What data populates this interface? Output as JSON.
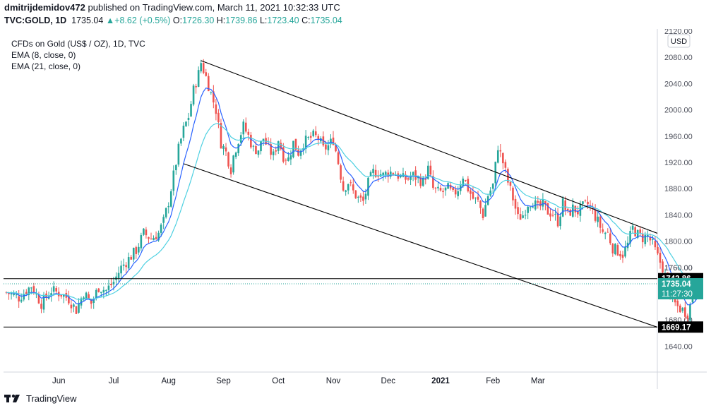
{
  "header": {
    "author": "dmitrijdemidov472",
    "published": "published on TradingView.com, March 11, 2021 10:32:33 UTC",
    "symbol": "TVC:GOLD, 1D",
    "last": "1735.04",
    "change": "+8.62 (+0.5%)",
    "open_label": "O:",
    "open": "1726.30",
    "high_label": "H:",
    "high": "1739.86",
    "low_label": "L:",
    "low": "1723.40",
    "close_label": "C:",
    "close": "1735.04"
  },
  "legend": {
    "title": "CFDs on Gold (US$ / OZ), 1D, TVC",
    "ema8": "EMA (8, close, 0)",
    "ema21": "EMA (21, close, 0)"
  },
  "footer": {
    "brand": "TradingView"
  },
  "colors": {
    "up": "#26a69a",
    "down": "#ef5350",
    "ema8": "#2962ff",
    "ema21": "#4dd0e1",
    "line": "#000000",
    "label_bg": "#000000",
    "price_bg": "#26a69a"
  },
  "icons": {
    "brand": "tradingview-logo-icon",
    "change": "triangle-up-icon"
  },
  "chart_data": {
    "type": "candlestick",
    "currency": "USD",
    "ylim": [
      1620,
      2120
    ],
    "y_ticks": [
      1640,
      1680,
      1720,
      1760,
      1800,
      1840,
      1880,
      1920,
      1960,
      2000,
      2040,
      2080,
      2120
    ],
    "x_labels": [
      "Jun",
      "Jul",
      "Aug",
      "Sep",
      "Oct",
      "Nov",
      "Dec",
      "2021",
      "Feb",
      "Mar"
    ],
    "x_label_days": [
      21,
      43,
      65,
      87,
      109,
      131,
      153,
      174,
      195,
      213
    ],
    "days": 231,
    "close_path": [
      [
        0,
        1722
      ],
      [
        5,
        1714
      ],
      [
        10,
        1732
      ],
      [
        14,
        1705
      ],
      [
        18,
        1725
      ],
      [
        22,
        1720
      ],
      [
        25,
        1712
      ],
      [
        28,
        1695
      ],
      [
        31,
        1722
      ],
      [
        34,
        1705
      ],
      [
        37,
        1730
      ],
      [
        40,
        1725
      ],
      [
        43,
        1738
      ],
      [
        46,
        1760
      ],
      [
        49,
        1773
      ],
      [
        52,
        1786
      ],
      [
        55,
        1812
      ],
      [
        58,
        1804
      ],
      [
        61,
        1812
      ],
      [
        63,
        1830
      ],
      [
        65,
        1860
      ],
      [
        67,
        1900
      ],
      [
        69,
        1940
      ],
      [
        71,
        1970
      ],
      [
        73,
        1990
      ],
      [
        75,
        2030
      ],
      [
        77,
        2055
      ],
      [
        78,
        2072
      ],
      [
        80,
        2050
      ],
      [
        82,
        2025
      ],
      [
        84,
        2000
      ],
      [
        86,
        1950
      ],
      [
        88,
        1935
      ],
      [
        90,
        1910
      ],
      [
        91,
        1930
      ],
      [
        93,
        1955
      ],
      [
        95,
        1975
      ],
      [
        97,
        1960
      ],
      [
        99,
        1940
      ],
      [
        101,
        1940
      ],
      [
        103,
        1957
      ],
      [
        105,
        1940
      ],
      [
        107,
        1930
      ],
      [
        109,
        1955
      ],
      [
        111,
        1930
      ],
      [
        113,
        1925
      ],
      [
        115,
        1950
      ],
      [
        117,
        1935
      ],
      [
        119,
        1950
      ],
      [
        121,
        1955
      ],
      [
        123,
        1960
      ],
      [
        125,
        1957
      ],
      [
        127,
        1940
      ],
      [
        129,
        1945
      ],
      [
        131,
        1955
      ],
      [
        133,
        1920
      ],
      [
        135,
        1880
      ],
      [
        137,
        1890
      ],
      [
        139,
        1875
      ],
      [
        141,
        1865
      ],
      [
        143,
        1860
      ],
      [
        145,
        1888
      ],
      [
        147,
        1905
      ],
      [
        149,
        1905
      ],
      [
        151,
        1900
      ],
      [
        153,
        1905
      ],
      [
        155,
        1905
      ],
      [
        157,
        1900
      ],
      [
        159,
        1895
      ],
      [
        161,
        1895
      ],
      [
        163,
        1900
      ],
      [
        165,
        1895
      ],
      [
        167,
        1890
      ],
      [
        169,
        1910
      ],
      [
        171,
        1880
      ],
      [
        173,
        1875
      ],
      [
        175,
        1875
      ],
      [
        177,
        1880
      ],
      [
        179,
        1870
      ],
      [
        181,
        1880
      ],
      [
        183,
        1900
      ],
      [
        185,
        1880
      ],
      [
        187,
        1865
      ],
      [
        189,
        1860
      ],
      [
        191,
        1840
      ],
      [
        193,
        1870
      ],
      [
        195,
        1885
      ],
      [
        197,
        1945
      ],
      [
        199,
        1920
      ],
      [
        201,
        1890
      ],
      [
        203,
        1865
      ],
      [
        205,
        1835
      ],
      [
        207,
        1840
      ],
      [
        209,
        1858
      ],
      [
        211,
        1860
      ],
      [
        213,
        1850
      ],
      [
        215,
        1855
      ],
      [
        217,
        1845
      ],
      [
        219,
        1842
      ],
      [
        221,
        1830
      ],
      [
        223,
        1858
      ],
      [
        225,
        1840
      ],
      [
        227,
        1850
      ],
      [
        229,
        1845
      ],
      [
        231,
        1852
      ],
      [
        233,
        1856
      ],
      [
        235,
        1845
      ],
      [
        237,
        1830
      ],
      [
        239,
        1814
      ],
      [
        241,
        1812
      ],
      [
        243,
        1790
      ],
      [
        245,
        1785
      ],
      [
        247,
        1780
      ],
      [
        249,
        1795
      ],
      [
        251,
        1820
      ],
      [
        253,
        1810
      ],
      [
        255,
        1805
      ],
      [
        257,
        1808
      ],
      [
        259,
        1795
      ],
      [
        261,
        1776
      ],
      [
        263,
        1760
      ],
      [
        265,
        1733
      ],
      [
        267,
        1708
      ],
      [
        269,
        1700
      ],
      [
        271,
        1695
      ],
      [
        273,
        1690
      ],
      [
        275,
        1715
      ],
      [
        277,
        1735
      ]
    ],
    "channel_upper": [
      [
        1,
        2075
      ],
      [
        2,
        1812
      ]
    ],
    "channel_lower": [
      [
        1,
        1918
      ],
      [
        2,
        1669
      ]
    ],
    "hline_high": 1742.86,
    "hline_low": 1669.17,
    "last_price": 1735.04,
    "labels": {
      "high": "1742.86",
      "low": "1669.17",
      "price": "1735.04",
      "countdown": "11:27:30",
      "partial_tick": "1760.00"
    }
  }
}
